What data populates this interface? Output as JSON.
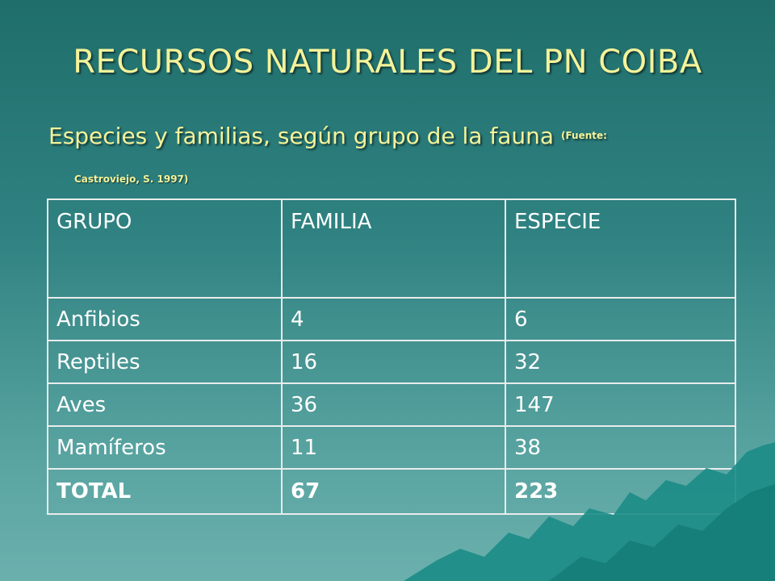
{
  "slide": {
    "title": "RECURSOS NATURALES DEL PN COIBA",
    "subtitle": "Especies y familias, según grupo de la fauna",
    "source_part1": "(Fuente:",
    "source_part2": "Castroviejo, S. 1997)"
  },
  "table": {
    "headers": [
      "GRUPO",
      "FAMILIA",
      "ESPECIE"
    ],
    "rows": [
      [
        "Anfibios",
        "4",
        "6"
      ],
      [
        "Reptiles",
        "16",
        "32"
      ],
      [
        "Aves",
        "36",
        "147"
      ],
      [
        "Mamíferos",
        "11",
        "38"
      ]
    ],
    "total": [
      "TOTAL",
      "67",
      "223"
    ]
  },
  "colors": {
    "title": "#f4f39a",
    "background": "#2f8281",
    "table_text": "#ffffff"
  }
}
